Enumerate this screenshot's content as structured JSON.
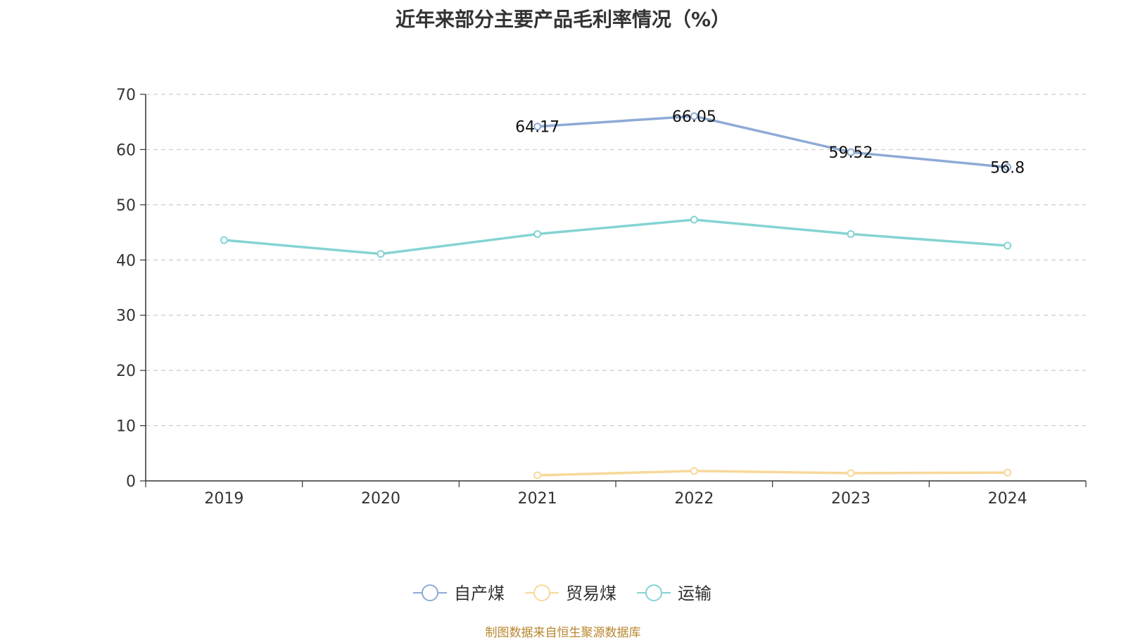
{
  "chart_data": {
    "type": "line",
    "title": "近年来部分主要产品毛利率情况（%）",
    "categories": [
      "2019",
      "2020",
      "2021",
      "2022",
      "2023",
      "2024"
    ],
    "ylim": [
      0,
      70
    ],
    "yticks": [
      "0",
      "10",
      "20",
      "30",
      "40",
      "50",
      "60",
      "70"
    ],
    "grid": true,
    "legend_position": "bottom-center",
    "series": [
      {
        "name": "自产煤",
        "color": "#8eaad6",
        "values": [
          null,
          null,
          64.17,
          66.05,
          59.52,
          56.8
        ],
        "labels": [
          null,
          null,
          "64.17",
          "66.05",
          "59.52",
          "56.8"
        ]
      },
      {
        "name": "贸易煤",
        "color": "#f7d89a",
        "values": [
          null,
          null,
          1.0,
          1.8,
          1.4,
          1.5
        ],
        "labels": [
          null,
          null,
          null,
          null,
          null,
          null
        ]
      },
      {
        "name": "运输",
        "color": "#85d3d3",
        "values": [
          43.6,
          41.1,
          44.7,
          47.3,
          44.7,
          42.6
        ],
        "labels": [
          null,
          null,
          null,
          null,
          null,
          null
        ]
      }
    ]
  },
  "source_note": "制图数据来自恒生聚源数据库"
}
